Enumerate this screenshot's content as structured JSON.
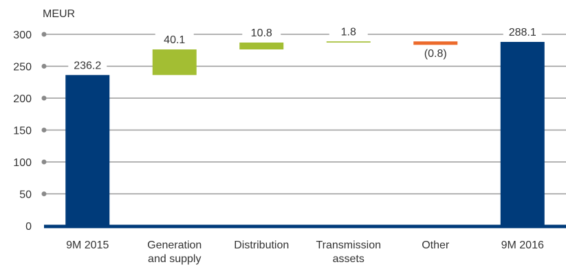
{
  "chart_data": {
    "type": "bar",
    "subtype": "waterfall",
    "unit_label": "MEUR",
    "ylim": [
      0,
      300
    ],
    "yticks": [
      0,
      50,
      100,
      150,
      200,
      250,
      300
    ],
    "grid": true,
    "bars": [
      {
        "category": [
          "9M 2015"
        ],
        "kind": "total",
        "start": 0,
        "end": 236.2,
        "label": "236.2",
        "color": "#003b7a"
      },
      {
        "category": [
          "Generation",
          "and supply"
        ],
        "kind": "delta",
        "start": 236.2,
        "end": 276.3,
        "label": "40.1",
        "color": "#a3be33"
      },
      {
        "category": [
          "Distribution"
        ],
        "kind": "delta",
        "start": 276.3,
        "end": 287.1,
        "label": "10.8",
        "color": "#a3be33"
      },
      {
        "category": [
          "Transmission",
          "assets"
        ],
        "kind": "delta",
        "start": 287.1,
        "end": 288.9,
        "label": "1.8",
        "color": "#a3be33"
      },
      {
        "category": [
          "Other"
        ],
        "kind": "delta",
        "start": 288.9,
        "end": 288.1,
        "label": "(0.8)",
        "color": "#ec6a2c"
      },
      {
        "category": [
          "9M 2016"
        ],
        "kind": "total",
        "start": 0,
        "end": 288.1,
        "label": "288.1",
        "color": "#003b7a"
      }
    ]
  },
  "colors": {
    "axis": "#003b7a",
    "grid": "#9a9a9a",
    "tick_dot": "#8a8a8a",
    "text": "#333333"
  }
}
